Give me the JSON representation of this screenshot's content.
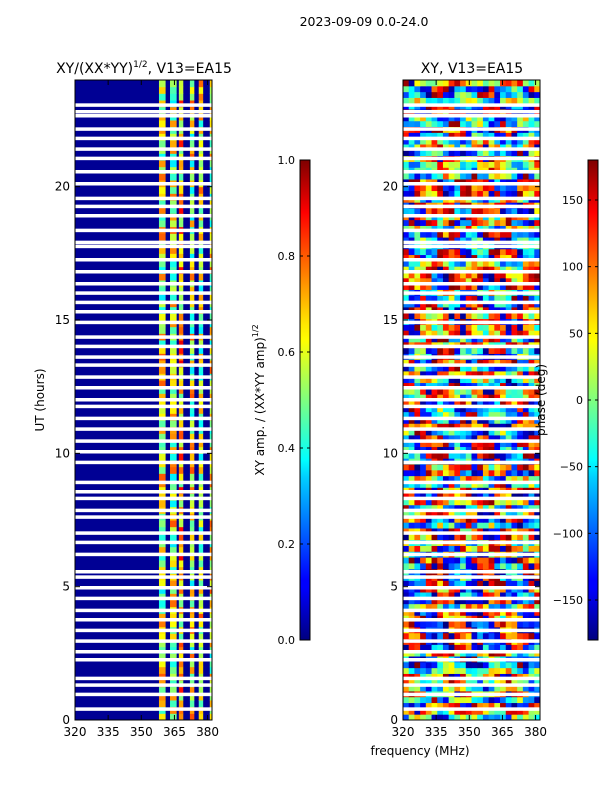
{
  "figure_title": "2023-09-09 0.0-24.0",
  "chart_data": [
    {
      "type": "heatmap",
      "title": "XY/(XX*YY)",
      "title_superscript": "1/2",
      "title_suffix": ", V13=EA15",
      "xlabel": "",
      "ylabel": "UT (hours)",
      "xlim": [
        320,
        382
      ],
      "ylim": [
        0,
        24
      ],
      "xticks": [
        320,
        335,
        350,
        365,
        380
      ],
      "yticks": [
        0,
        5,
        10,
        15,
        20
      ],
      "colorbar": {
        "label": "XY amp. / (XX*YY amp)",
        "label_superscript": "1/2",
        "range": [
          0.0,
          1.0
        ],
        "ticks": [
          "0.0",
          "0.2",
          "0.4",
          "0.6",
          "0.8",
          "1.0"
        ],
        "tick_values": [
          0.0,
          0.2,
          0.4,
          0.6,
          0.8,
          1.0
        ]
      },
      "description_bands_mhz": [
        [
          358,
          361
        ],
        [
          363,
          366
        ],
        [
          367,
          369
        ],
        [
          372,
          374
        ],
        [
          376,
          378
        ],
        [
          381,
          382
        ]
      ]
    },
    {
      "type": "heatmap",
      "title": "XY, V13=EA15",
      "xlabel": "frequency (MHz)",
      "ylabel": "",
      "xlim": [
        320,
        382
      ],
      "ylim": [
        0,
        24
      ],
      "xticks": [
        320,
        335,
        350,
        365,
        380
      ],
      "yticks": [
        0,
        5,
        10,
        15,
        20
      ],
      "colorbar": {
        "label": "phase (deg)",
        "range": [
          -180,
          180
        ],
        "ticks": [
          "−150",
          "−100",
          "−50",
          "0",
          "50",
          "100",
          "150"
        ],
        "tick_values": [
          -150,
          -100,
          -50,
          0,
          50,
          100,
          150
        ]
      }
    }
  ],
  "flagged_hours": [
    0.4,
    0.95,
    1.3,
    1.55,
    2.25,
    2.55,
    2.95,
    3.35,
    3.75,
    4.1,
    4.55,
    4.95,
    5.35,
    5.55,
    6.2,
    6.65,
    7.0,
    7.6,
    7.85,
    8.3,
    8.55,
    8.9,
    9.65,
    10.05,
    10.45,
    10.9,
    11.3,
    11.75,
    12.0,
    12.45,
    12.85,
    13.3,
    13.6,
    14.0,
    14.35,
    14.9,
    15.3,
    15.65,
    16.0,
    16.35,
    16.8,
    17.25,
    17.75,
    17.9,
    18.35,
    18.9,
    19.25,
    19.55,
    20.1,
    20.55,
    21.05,
    21.4,
    21.8,
    22.15,
    22.65,
    22.8,
    23.05
  ]
}
